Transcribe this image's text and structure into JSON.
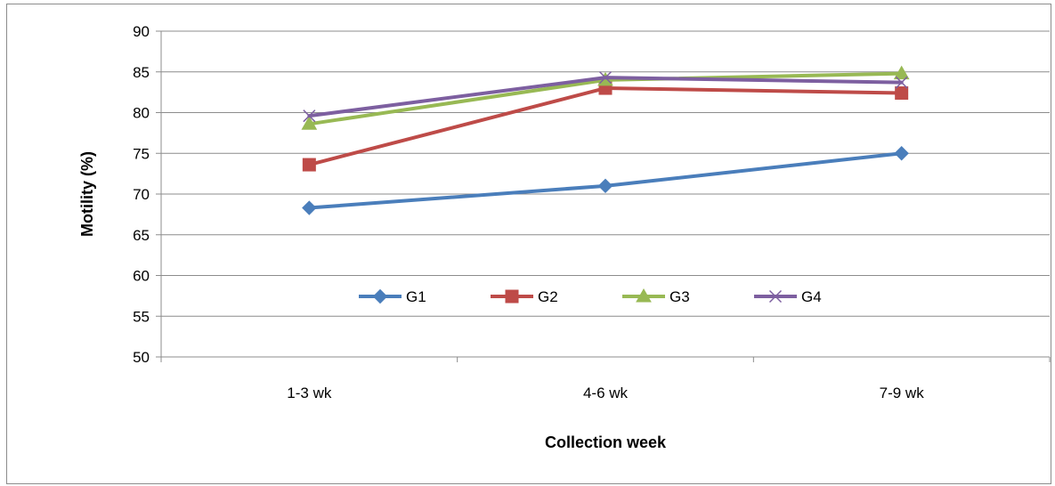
{
  "chart_data": {
    "type": "line",
    "title": "",
    "xlabel": "Collection week",
    "ylabel": "Motility (%)",
    "categories": [
      "1-3 wk",
      "4-6 wk",
      "7-9 wk"
    ],
    "ylim": [
      50,
      90
    ],
    "y_ticks": [
      50,
      55,
      60,
      65,
      70,
      75,
      80,
      85,
      90
    ],
    "grid": true,
    "legend_position": "inside-bottom-center",
    "series": [
      {
        "name": "G1",
        "values": [
          68.3,
          71.0,
          75.0
        ],
        "color": "#4a7ebb",
        "marker": "diamond"
      },
      {
        "name": "G2",
        "values": [
          73.6,
          83.0,
          82.4
        ],
        "color": "#be4b48",
        "marker": "square"
      },
      {
        "name": "G3",
        "values": [
          78.6,
          84.0,
          84.8
        ],
        "color": "#98b954",
        "marker": "triangle"
      },
      {
        "name": "G4",
        "values": [
          79.6,
          84.3,
          83.7
        ],
        "color": "#7d5fa0",
        "marker": "x"
      }
    ]
  }
}
